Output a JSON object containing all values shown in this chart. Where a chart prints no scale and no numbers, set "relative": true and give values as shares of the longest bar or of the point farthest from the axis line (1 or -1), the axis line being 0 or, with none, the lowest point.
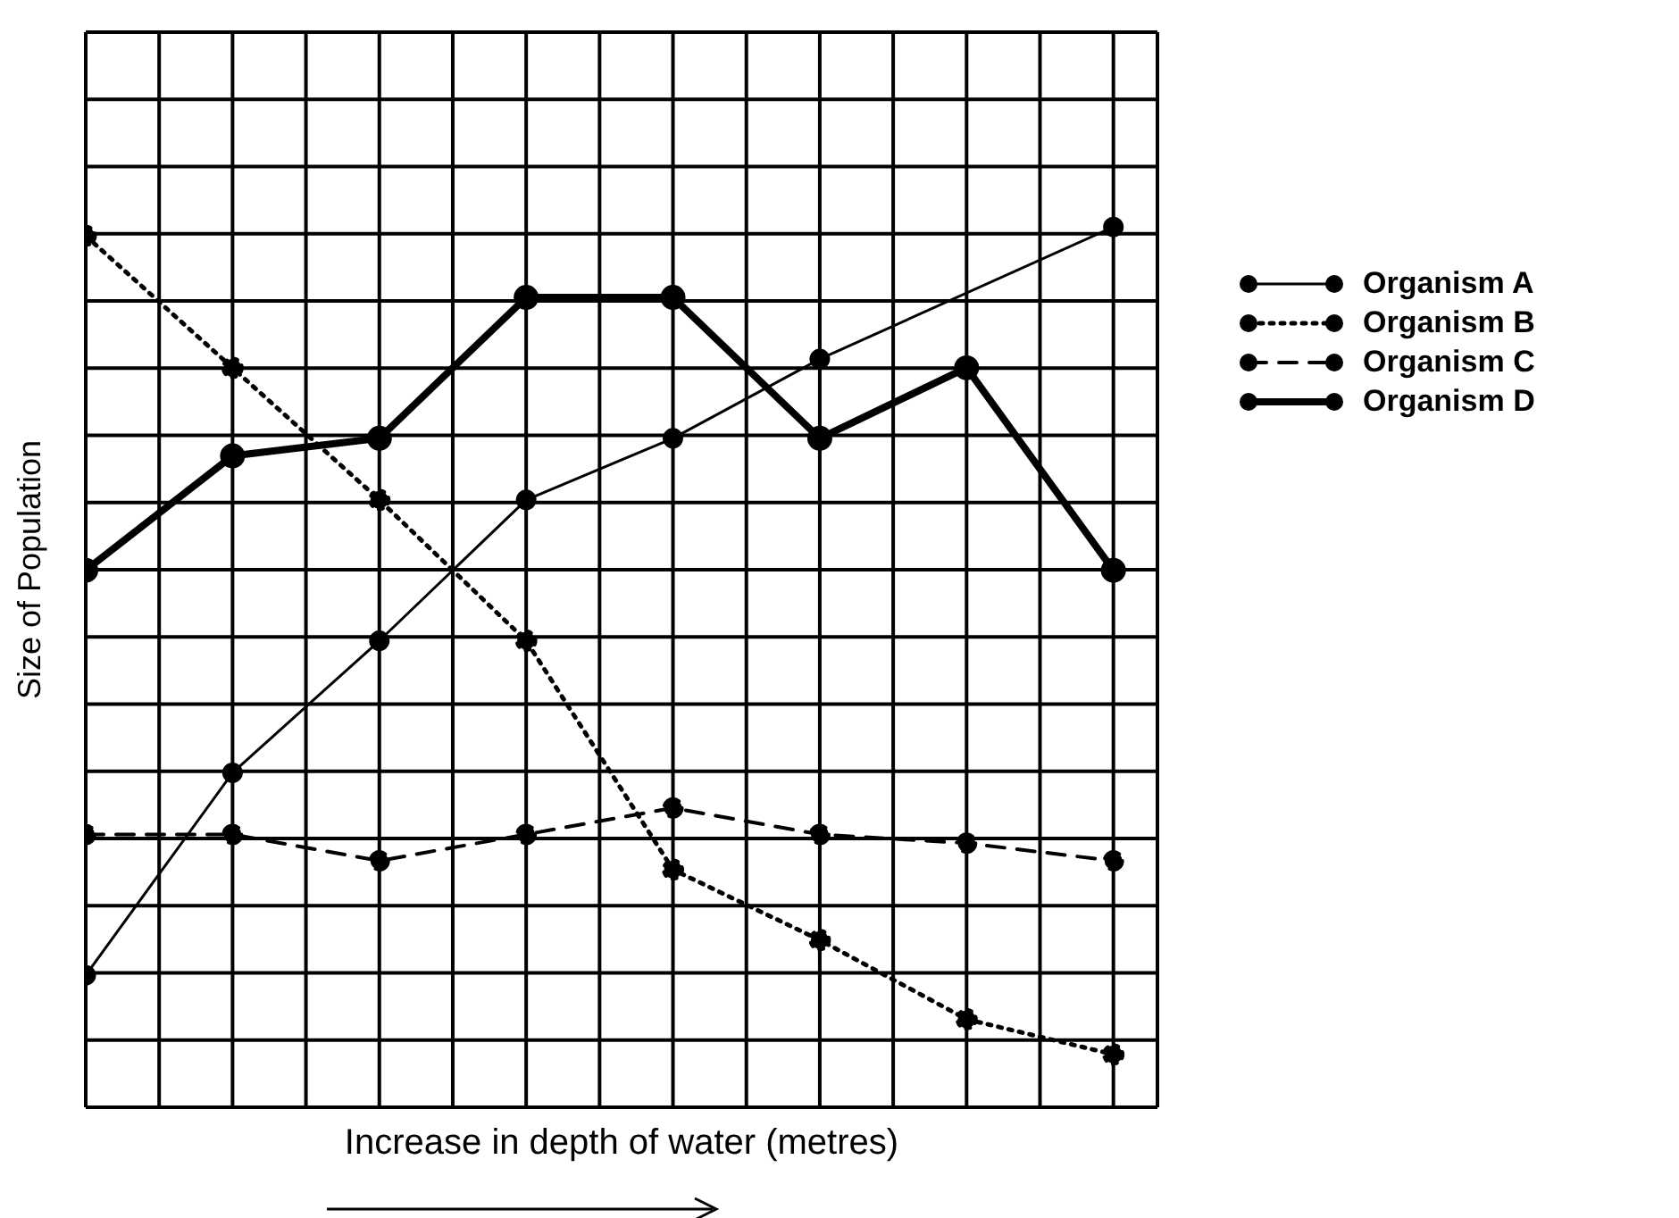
{
  "chart_data": {
    "type": "line",
    "relative": true,
    "xlabel": "Increase in depth of water (metres)",
    "ylabel": "Size of Population",
    "categories": [
      null,
      null,
      null,
      null,
      null,
      null,
      null,
      null
    ],
    "grid": true,
    "legend": "right",
    "marker": "circle",
    "series": [
      {
        "name": "Organism A",
        "color": "#000000",
        "line_style": "solid",
        "values": [
          0.15,
          0.38,
          0.53,
          0.69,
          0.76,
          0.85,
          null,
          1
        ]
      },
      {
        "name": "Organism B",
        "color": "#000000",
        "line_style": "dotted",
        "values": [
          0.99,
          0.84,
          0.69,
          0.53,
          0.27,
          0.19,
          0.1,
          0.06
        ]
      },
      {
        "name": "Organism C",
        "color": "#000000",
        "line_style": "dashed",
        "values": [
          0.31,
          0.31,
          0.28,
          0.31,
          0.34,
          0.31,
          0.3,
          0.28
        ]
      },
      {
        "name": "Organism D",
        "color": "#000000",
        "line_style": "solid",
        "values": [
          0.61,
          0.74,
          0.76,
          0.92,
          0.92,
          0.76,
          0.84,
          0.61
        ]
      }
    ]
  }
}
